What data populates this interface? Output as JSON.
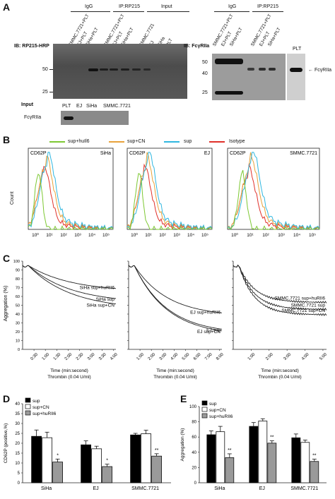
{
  "panel_a": {
    "letter": "A",
    "left_blot": {
      "group_labels": [
        "IgG",
        "IP:RP215",
        "Input"
      ],
      "lane_labels": [
        "SMMC.7721+PLT",
        "EJ+PLT",
        "SiHa+PLT",
        "SMMC.7721+PLT",
        "EJ+PLT",
        "SiHa+PLT",
        "SMMC.7721",
        "EJ",
        "SiHa",
        "PLT"
      ],
      "ib_label": "IB: RP215-HRP",
      "markers": [
        "50",
        "25"
      ]
    },
    "input_blot": {
      "title": "Input",
      "lane_labels": [
        "PLT",
        "EJ",
        "SiHa",
        "SMMC.7721"
      ],
      "row_label": "FcγRIIa"
    },
    "right_blot": {
      "group_labels": [
        "IgG",
        "IP:RP215"
      ],
      "lane_labels": [
        "SMMC.7721+PLT",
        "EJ+PLT",
        "SiHa+PLT",
        "SMMC.7721+PLT",
        "EJ+PLT",
        "SiHa+PLT"
      ],
      "extra_lane": "PLT",
      "ib_label": "IB: FcγRIIa",
      "markers": [
        "50",
        "40",
        "25"
      ],
      "arrow_label": "FcγRIIa"
    }
  },
  "panel_b": {
    "letter": "B",
    "legend": [
      {
        "name": "sup+huIl6",
        "color": "#7dc832"
      },
      {
        "name": "sup+CN",
        "color": "#e8a23a"
      },
      {
        "name": "sup",
        "color": "#2fb7e0"
      },
      {
        "name": "Isotype",
        "color": "#e0302a"
      }
    ],
    "ylabel": "Count",
    "marker_label": "CD62P",
    "x_ticks": [
      "10⁰",
      "10¹",
      "10²",
      "10³",
      "10⁴",
      "10⁵"
    ],
    "plots": [
      {
        "cell": "SiHa"
      },
      {
        "cell": "EJ"
      },
      {
        "cell": "SMMC.7721"
      }
    ]
  },
  "panel_c": {
    "letter": "C",
    "ylabel": "Aggregation (%)",
    "ytick_labels": [
      "0",
      "10",
      "20",
      "30",
      "40",
      "50",
      "60",
      "70",
      "80",
      "90",
      "100"
    ],
    "xlabel": "Time (min:second)",
    "xlabel2": "Thrombin (0.04 U/ml)",
    "plots": [
      {
        "xticks": [
          "0:30",
          "1:00",
          "1:30",
          "2:00",
          "2:30",
          "3:00",
          "3:30",
          "4:00"
        ],
        "labels": [
          "SiHa sup+huRII6",
          "SiHa sup",
          "SiHa sup+CN"
        ]
      },
      {
        "xticks": [
          "1:00",
          "2:00",
          "3:00",
          "4:00",
          "5:00",
          "6:00",
          "7:00",
          "8:00"
        ],
        "labels": [
          "EJ sup+huRII6",
          "EJ sup",
          "EJ sup+CN"
        ]
      },
      {
        "xticks": [
          "1:00",
          "2:00",
          "3:00",
          "4:00",
          "5:00"
        ],
        "labels": [
          "SMMC.7721 sup+huRII6",
          "SMMC.7721 sup",
          "SMMC.7721 sup+CN"
        ]
      }
    ]
  },
  "chart_data": [
    {
      "type": "bar",
      "panel": "D",
      "categories": [
        "SiHa",
        "EJ",
        "SMMC.7721"
      ],
      "series": [
        {
          "name": "sup",
          "values": [
            23.5,
            19.2,
            24.2
          ],
          "errors": [
            3.2,
            2.0,
            0.8
          ],
          "color": "#000000"
        },
        {
          "name": "sup+CN",
          "values": [
            22.8,
            17.2,
            24.8
          ],
          "errors": [
            2.8,
            1.3,
            1.8
          ],
          "color": "#ffffff"
        },
        {
          "name": "sup+huRII6",
          "values": [
            10.5,
            8.2,
            13.5
          ],
          "errors": [
            1.5,
            1.2,
            1.2
          ],
          "color": "#9a9a9a"
        }
      ],
      "ylabel": "CD62P (positive,%)",
      "ylim": [
        0,
        40
      ],
      "yticks": [
        0,
        5,
        10,
        15,
        20,
        25,
        30,
        35,
        40
      ],
      "significance": [
        "*",
        "*",
        "**"
      ]
    },
    {
      "type": "bar",
      "panel": "E",
      "categories": [
        "SiHa",
        "EJ",
        "SMMC.7721"
      ],
      "series": [
        {
          "name": "sup",
          "values": [
            63,
            74,
            59
          ],
          "errors": [
            5,
            5,
            5
          ],
          "color": "#000000"
        },
        {
          "name": "sup+CN",
          "values": [
            67,
            81,
            53
          ],
          "errors": [
            7,
            3,
            3
          ],
          "color": "#ffffff"
        },
        {
          "name": "sup+huRII6",
          "values": [
            33,
            52,
            28
          ],
          "errors": [
            5,
            3,
            3
          ],
          "color": "#9a9a9a"
        }
      ],
      "ylabel": "Aggregation (%)",
      "ylim": [
        0,
        100
      ],
      "yticks": [
        0,
        20,
        40,
        60,
        80,
        100
      ],
      "significance": [
        "**",
        "**",
        "**"
      ]
    }
  ]
}
